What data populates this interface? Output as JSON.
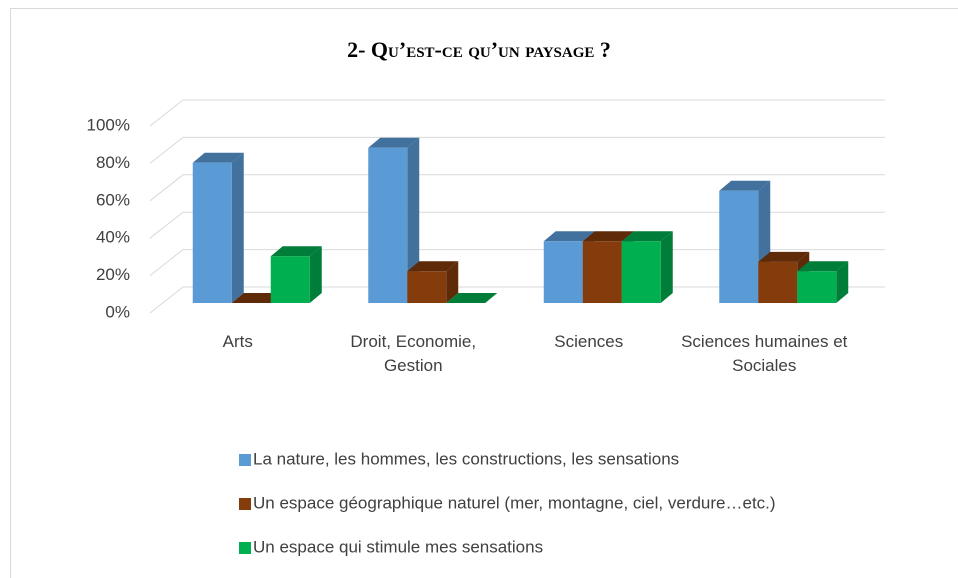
{
  "chart_data": {
    "type": "bar3d",
    "title": "2- Qu’est-ce qu’un paysage ?",
    "categories": [
      "Arts",
      "Droit, Economie, Gestion",
      "Sciences",
      "Sciences humaines et Sociales"
    ],
    "series": [
      {
        "name": "La nature, les hommes, les constructions, les sensations",
        "color": "#5b9bd5",
        "side": "#41719c",
        "values": [
          75,
          83,
          33,
          60
        ]
      },
      {
        "name": "Un espace géographique naturel (mer, montagne, ciel, verdure…etc.)",
        "color": "#843c0c",
        "side": "#5e2a08",
        "values": [
          0,
          17,
          33,
          22
        ]
      },
      {
        "name": "Un espace qui stimule mes sensations",
        "color": "#00b050",
        "side": "#007d39",
        "values": [
          25,
          0,
          33,
          17
        ]
      }
    ],
    "ylim": [
      0,
      100
    ],
    "yticks": [
      {
        "value": 0,
        "label": "0%"
      },
      {
        "value": 20,
        "label": "20%"
      },
      {
        "value": 40,
        "label": "40%"
      },
      {
        "value": 60,
        "label": "60%"
      },
      {
        "value": 80,
        "label": "80%"
      },
      {
        "value": 100,
        "label": "100%"
      }
    ],
    "grid": true,
    "legend": "bottom"
  }
}
